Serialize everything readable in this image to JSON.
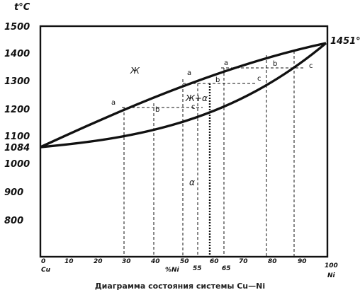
{
  "diagram": {
    "y_axis_label": "t°C",
    "y_ticks": [
      "1500",
      "1400",
      "1300",
      "1200",
      "1100",
      "1000",
      "900",
      "800"
    ],
    "melting_cu": "1084",
    "melting_ni": "1451°",
    "x_start_label": "0",
    "x_ticks": [
      "10",
      "20",
      "30",
      "40",
      "50",
      "60",
      "70",
      "80",
      "90"
    ],
    "x_end_label": "100",
    "x_axis_unit": "%Ni",
    "element_left": "Cu",
    "element_right": "Ni",
    "extra_x_marks": [
      "55",
      "65"
    ],
    "region_liquid": "Ж",
    "region_two_phase": "Ж+α",
    "region_solid": "α",
    "point_labels": {
      "a": "a",
      "b": "b",
      "c": "c"
    },
    "caption": "Диаграмма состояния системы Cu—Ni"
  }
}
